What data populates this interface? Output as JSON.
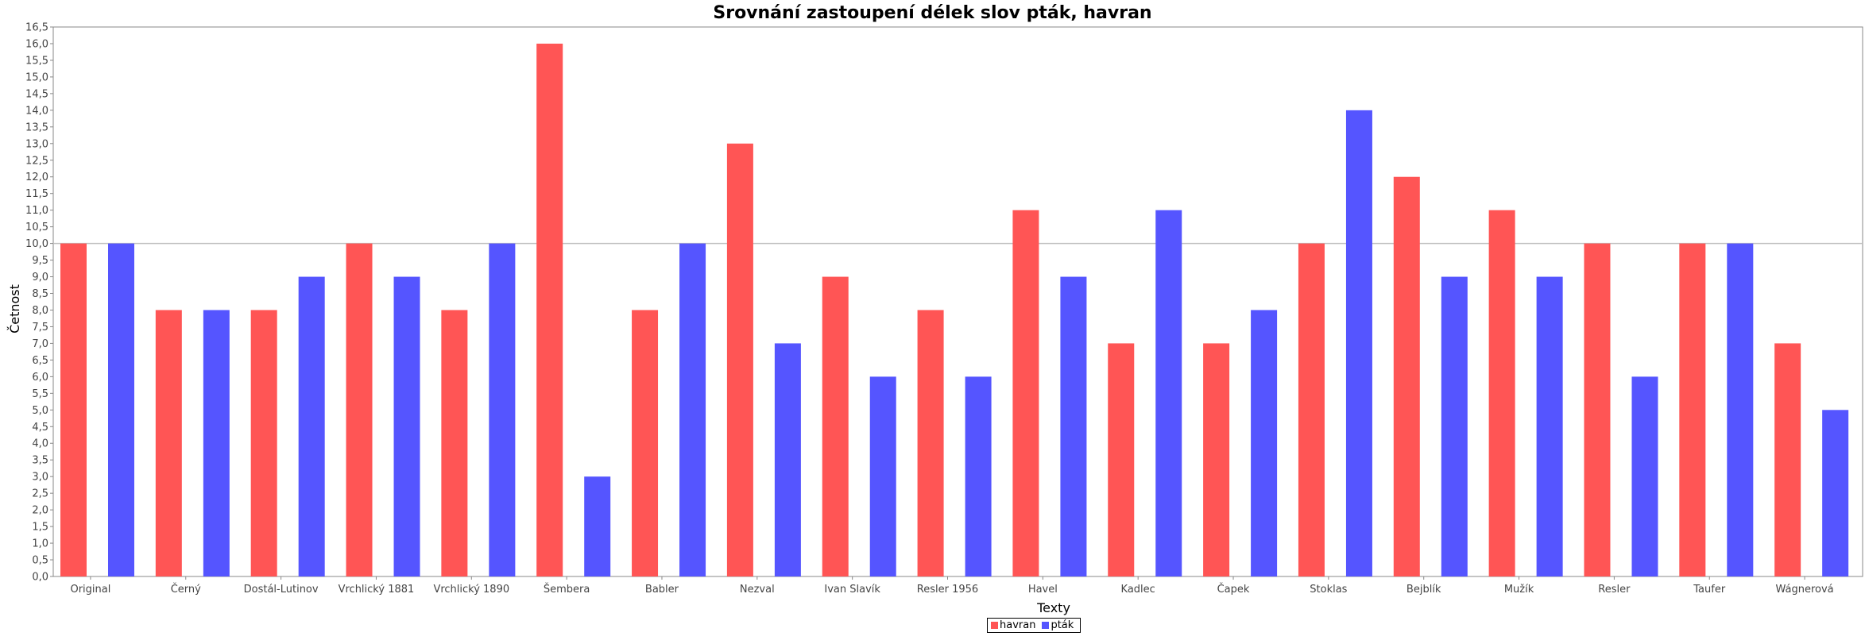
{
  "chart_data": {
    "type": "bar",
    "title": "Srovnání zastoupení délek slov pták, havran",
    "xlabel": "Texty",
    "ylabel": "Četnost",
    "ylim": [
      0,
      16.5
    ],
    "ytick_step": 0.5,
    "grid": false,
    "reference_line": 10,
    "legend_position": "bottom-center",
    "categories": [
      "Original",
      "Černý",
      "Dostál-Lutinov",
      "Vrchlický 1881",
      "Vrchlický 1890",
      "Šembera",
      "Babler",
      "Nezval",
      "Ivan Slavík",
      "Resler 1956",
      "Havel",
      "Kadlec",
      "Čapek",
      "Stoklas",
      "Bejblík",
      "Mužík",
      "Resler",
      "Taufer",
      "Wágnerová"
    ],
    "series": [
      {
        "name": "havran",
        "color": "#ff5555",
        "values": [
          10,
          8,
          8,
          10,
          8,
          16,
          8,
          13,
          9,
          8,
          11,
          7,
          7,
          10,
          12,
          11,
          10,
          10,
          7
        ]
      },
      {
        "name": "pták",
        "color": "#5555ff",
        "values": [
          10,
          8,
          9,
          9,
          10,
          3,
          10,
          7,
          6,
          6,
          9,
          11,
          8,
          14,
          9,
          9,
          6,
          10,
          5
        ]
      }
    ]
  }
}
